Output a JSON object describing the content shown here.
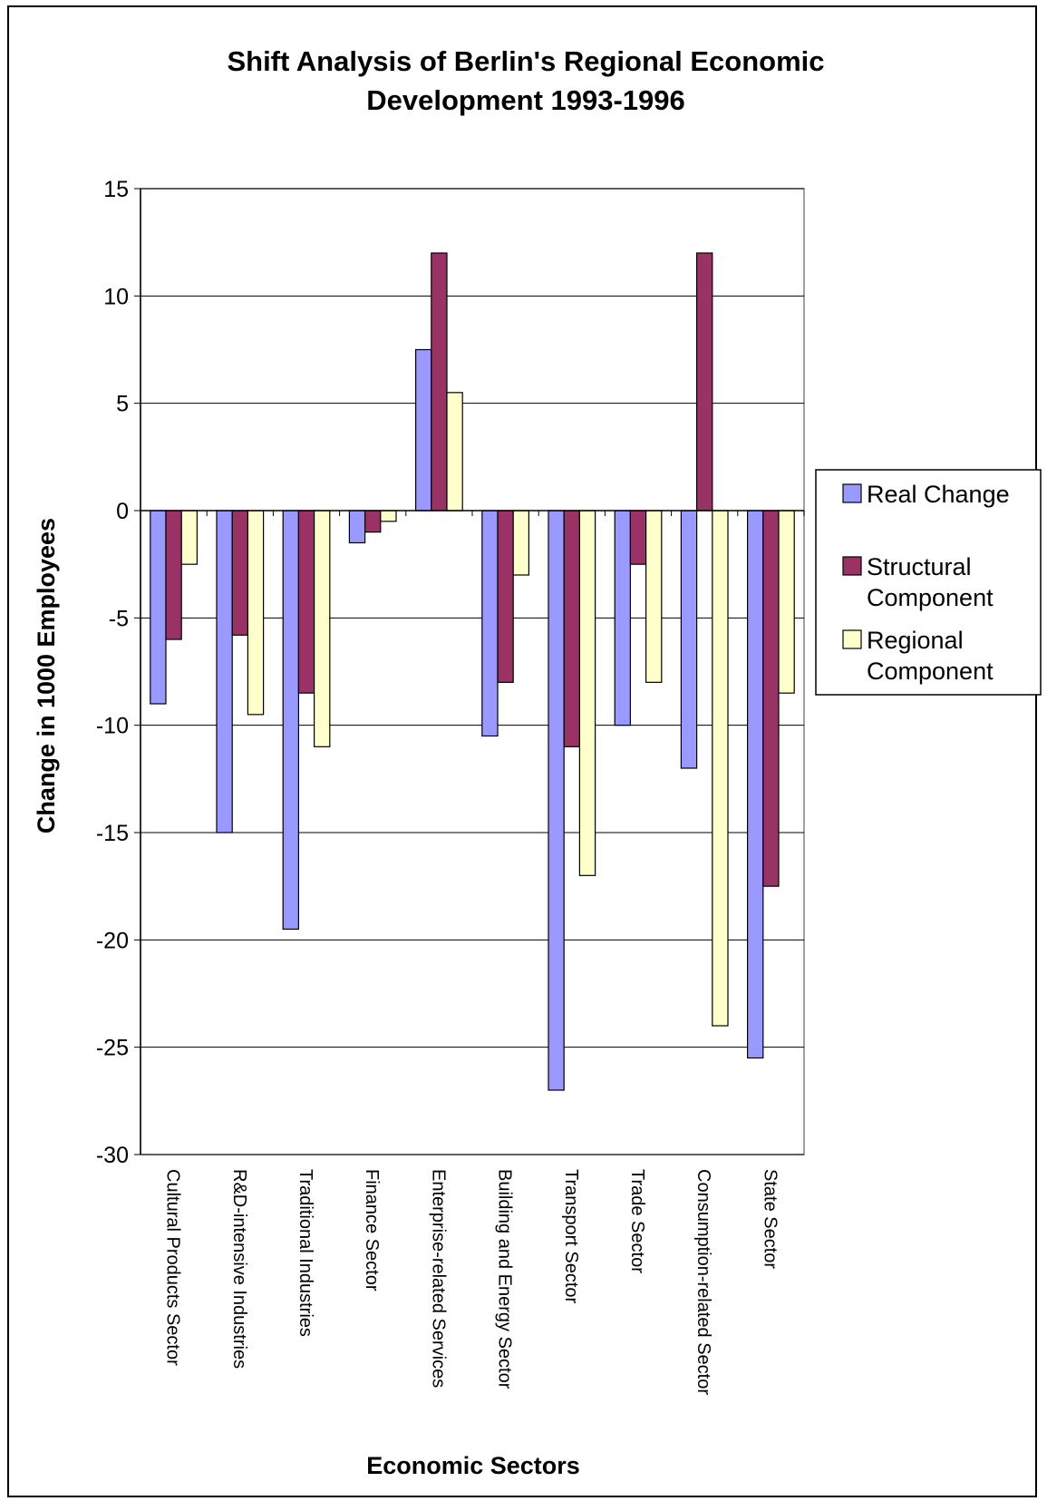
{
  "chart_data": {
    "type": "bar",
    "title": "Shift Analysis of Berlin's Regional Economic Development 1993-1996",
    "title_lines": [
      "Shift Analysis of Berlin's Regional Economic",
      "Development 1993-1996"
    ],
    "xlabel": "Economic Sectors",
    "ylabel": "Change in 1000 Employees",
    "ylim": [
      -30,
      15
    ],
    "yticks": [
      15,
      10,
      5,
      0,
      -5,
      -10,
      -15,
      -20,
      -25,
      -30
    ],
    "grid": true,
    "legend_position": "right",
    "categories": [
      "Cultural Products Sector",
      "R&D-intensive Industries",
      "Traditional Industries",
      "Finance Sector",
      "Enterprise-related Services",
      "Building and Energy Sector",
      "Transport Sector",
      "Trade Sector",
      "Consumption-related Sector",
      "State Sector"
    ],
    "series": [
      {
        "name": "Real Change",
        "legend_lines": [
          "Real Change"
        ],
        "color": "#9999ff",
        "values": [
          -9,
          -15,
          -19.5,
          -1.5,
          7.5,
          -10.5,
          -27,
          -10,
          -12,
          -25.5
        ]
      },
      {
        "name": "Structural Component",
        "legend_lines": [
          "Structural",
          "Component"
        ],
        "color": "#993366",
        "values": [
          -6,
          -5.8,
          -8.5,
          -1,
          12,
          -8,
          -11,
          -2.5,
          12,
          -17.5
        ]
      },
      {
        "name": "Regional Component",
        "legend_lines": [
          "Regional",
          "Component"
        ],
        "color": "#ffffcc",
        "values": [
          -2.5,
          -9.5,
          -11,
          -0.5,
          5.5,
          -3,
          -17,
          -8,
          -24,
          -8.5
        ]
      }
    ]
  }
}
